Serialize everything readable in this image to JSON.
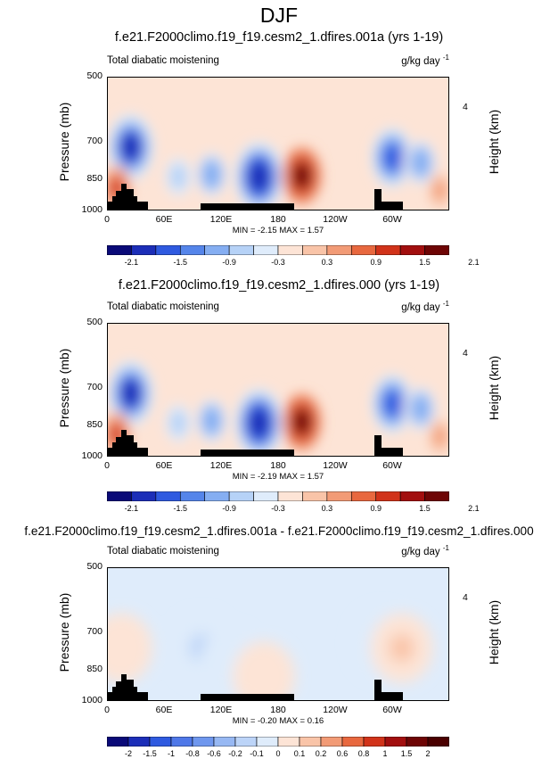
{
  "title": "DJF",
  "panels": [
    {
      "case_title": "f.e21.F2000climo.f19_f19.cesm2_1.dfires.001a (yrs 1-19)",
      "left_title": "Total diabatic moistening",
      "units_base": "g/kg day",
      "units_exp": "-1",
      "min_label": "MIN = -2.15",
      "max_label": "MAX = 1.57",
      "colorbar_labels": [
        "-2.1",
        "-1.5",
        "-0.9",
        "-0.3",
        "0.3",
        "0.9",
        "1.5",
        "2.1"
      ]
    },
    {
      "case_title": "f.e21.F2000climo.f19_f19.cesm2_1.dfires.000 (yrs 1-19)",
      "left_title": "Total diabatic moistening",
      "units_base": "g/kg day",
      "units_exp": "-1",
      "min_label": "MIN = -2.19",
      "max_label": "MAX = 1.57",
      "colorbar_labels": [
        "-2.1",
        "-1.5",
        "-0.9",
        "-0.3",
        "0.3",
        "0.9",
        "1.5",
        "2.1"
      ]
    },
    {
      "case_title": "f.e21.F2000climo.f19_f19.cesm2_1.dfires.001a - f.e21.F2000climo.f19_f19.cesm2_1.dfires.000",
      "left_title": "Total diabatic moistening",
      "units_base": "g/kg day",
      "units_exp": "-1",
      "min_label": "MIN = -0.20",
      "max_label": "MAX = 0.16",
      "colorbar_labels": [
        "-2",
        "-1.5",
        "-1",
        "-0.8",
        "-0.6",
        "-0.2",
        "-0.1",
        "0",
        "0.1",
        "0.2",
        "0.6",
        "0.8",
        "1",
        "1.5",
        "2"
      ]
    }
  ],
  "axes": {
    "ylabel": "Pressure (mb)",
    "y2label": "Height (km)",
    "yticks": [
      "500",
      "700",
      "850",
      "1000"
    ],
    "y2ticks": [
      "4"
    ],
    "xticks": [
      "0",
      "60E",
      "120E",
      "180",
      "120W",
      "60W"
    ]
  },
  "colors": {
    "main_scale": [
      "#0a0a78",
      "#1c2eb8",
      "#2f5ae0",
      "#5585ea",
      "#85aef2",
      "#b6d2f7",
      "#dfecfb",
      "#fde4d6",
      "#f9c4a8",
      "#f29b76",
      "#e8683f",
      "#d1331a",
      "#a20f0f",
      "#6e0505"
    ],
    "diff_scale": [
      "#0a0a78",
      "#1c2eb8",
      "#2f5ae0",
      "#4f78e8",
      "#6f97ee",
      "#97b8f3",
      "#bcd4f8",
      "#dfecfb",
      "#fde4d6",
      "#f9c4a8",
      "#f29b76",
      "#e8683f",
      "#d1331a",
      "#a20f0f",
      "#6e0505",
      "#4a0000"
    ],
    "topography": "#000000"
  },
  "chart_data": [
    {
      "type": "heatmap",
      "title": "f.e21.F2000climo.f19_f19.cesm2_1.dfires.001a (yrs 1-19)",
      "xlabel": "",
      "ylabel": "Pressure (mb)",
      "y2label": "Height (km)",
      "x_ticks": [
        "0",
        "60E",
        "120E",
        "180",
        "120W",
        "60W"
      ],
      "y_ticks": [
        500,
        700,
        850,
        1000
      ],
      "y_range_mb": [
        1000,
        500
      ],
      "levels": [
        -2.1,
        -1.8,
        -1.5,
        -1.2,
        -0.9,
        -0.6,
        -0.3,
        0,
        0.3,
        0.6,
        0.9,
        1.2,
        1.5,
        1.8,
        2.1
      ],
      "min": -2.15,
      "max": 1.57,
      "features": [
        {
          "lon": 25,
          "p": 720,
          "value": -1.9
        },
        {
          "lon": 10,
          "p": 890,
          "value": 0.9
        },
        {
          "lon": 160,
          "p": 840,
          "value": -2.1
        },
        {
          "lon": 110,
          "p": 830,
          "value": -1.2
        },
        {
          "lon": 75,
          "p": 840,
          "value": -0.9
        },
        {
          "lon": 205,
          "p": 835,
          "value": 1.5
        },
        {
          "lon": 300,
          "p": 760,
          "value": -1.6
        },
        {
          "lon": 330,
          "p": 780,
          "value": -1.2
        },
        {
          "lon": 350,
          "p": 900,
          "value": 0.4
        }
      ]
    },
    {
      "type": "heatmap",
      "title": "f.e21.F2000climo.f19_f19.cesm2_1.dfires.000 (yrs 1-19)",
      "xlabel": "",
      "ylabel": "Pressure (mb)",
      "y2label": "Height (km)",
      "x_ticks": [
        "0",
        "60E",
        "120E",
        "180",
        "120W",
        "60W"
      ],
      "y_ticks": [
        500,
        700,
        850,
        1000
      ],
      "y_range_mb": [
        1000,
        500
      ],
      "levels": [
        -2.1,
        -1.8,
        -1.5,
        -1.2,
        -0.9,
        -0.6,
        -0.3,
        0,
        0.3,
        0.6,
        0.9,
        1.2,
        1.5,
        1.8,
        2.1
      ],
      "min": -2.19,
      "max": 1.57,
      "features": [
        {
          "lon": 25,
          "p": 720,
          "value": -1.9
        },
        {
          "lon": 10,
          "p": 890,
          "value": 0.9
        },
        {
          "lon": 160,
          "p": 840,
          "value": -2.1
        },
        {
          "lon": 110,
          "p": 830,
          "value": -1.2
        },
        {
          "lon": 75,
          "p": 840,
          "value": -0.9
        },
        {
          "lon": 205,
          "p": 835,
          "value": 1.5
        },
        {
          "lon": 300,
          "p": 760,
          "value": -1.6
        },
        {
          "lon": 330,
          "p": 780,
          "value": -1.2
        },
        {
          "lon": 350,
          "p": 900,
          "value": 0.4
        }
      ]
    },
    {
      "type": "heatmap",
      "title": "f.e21.F2000climo.f19_f19.cesm2_1.dfires.001a - f.e21.F2000climo.f19_f19.cesm2_1.dfires.000",
      "xlabel": "",
      "ylabel": "Pressure (mb)",
      "y2label": "Height (km)",
      "x_ticks": [
        "0",
        "60E",
        "120E",
        "180",
        "120W",
        "60W"
      ],
      "y_ticks": [
        500,
        700,
        850,
        1000
      ],
      "y_range_mb": [
        1000,
        500
      ],
      "levels": [
        -2,
        -1.5,
        -1,
        -0.8,
        -0.6,
        -0.2,
        -0.1,
        0,
        0.1,
        0.2,
        0.6,
        0.8,
        1,
        1.5,
        2
      ],
      "min": -0.2,
      "max": 0.16,
      "features": [
        {
          "lon": 15,
          "p": 760,
          "value": 0.08
        },
        {
          "lon": 100,
          "p": 760,
          "value": -0.12
        },
        {
          "lon": 130,
          "p": 820,
          "value": -0.1
        },
        {
          "lon": 165,
          "p": 880,
          "value": 0.08
        },
        {
          "lon": 290,
          "p": 740,
          "value": -0.1
        },
        {
          "lon": 310,
          "p": 760,
          "value": 0.12
        }
      ]
    }
  ]
}
